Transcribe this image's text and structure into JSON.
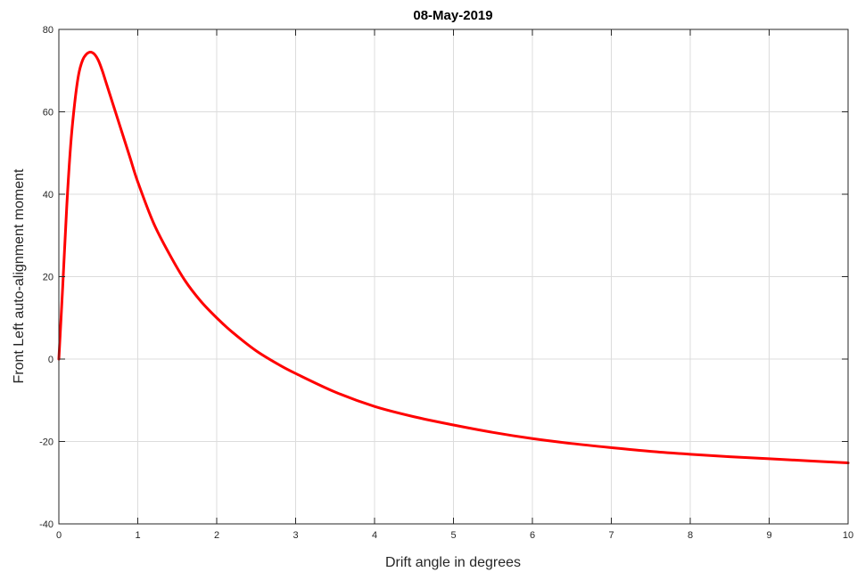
{
  "chart_data": {
    "type": "line",
    "title": "08-May-2019",
    "xlabel": "Drift angle in degrees",
    "ylabel": "Front Left auto-alignment moment",
    "xlim": [
      0,
      10
    ],
    "ylim": [
      -40,
      80
    ],
    "xticks": [
      0,
      1,
      2,
      3,
      4,
      5,
      6,
      7,
      8,
      9,
      10
    ],
    "yticks": [
      -40,
      -20,
      0,
      20,
      40,
      60,
      80
    ],
    "grid": true,
    "series": [
      {
        "color": "#ff0000",
        "x": [
          0,
          0.05,
          0.1,
          0.15,
          0.2,
          0.25,
          0.3,
          0.35,
          0.4,
          0.45,
          0.5,
          0.55,
          0.6,
          0.7,
          0.8,
          0.9,
          1.0,
          1.2,
          1.4,
          1.6,
          1.8,
          2.0,
          2.2,
          2.5,
          2.8,
          3.0,
          3.5,
          4.0,
          4.5,
          5.0,
          5.5,
          6.0,
          6.5,
          7.0,
          7.5,
          8.0,
          8.5,
          9.0,
          9.5,
          10.0
        ],
        "y": [
          0,
          18,
          37,
          52,
          62,
          69,
          72.5,
          74,
          74.5,
          74,
          72.5,
          70,
          67,
          61,
          55,
          49,
          43,
          33,
          25.5,
          19,
          14,
          10,
          6.5,
          2,
          -1.5,
          -3.5,
          -8,
          -11.5,
          -14,
          -16,
          -17.8,
          -19.3,
          -20.5,
          -21.5,
          -22.4,
          -23.1,
          -23.7,
          -24.2,
          -24.7,
          -25.2
        ]
      }
    ]
  }
}
